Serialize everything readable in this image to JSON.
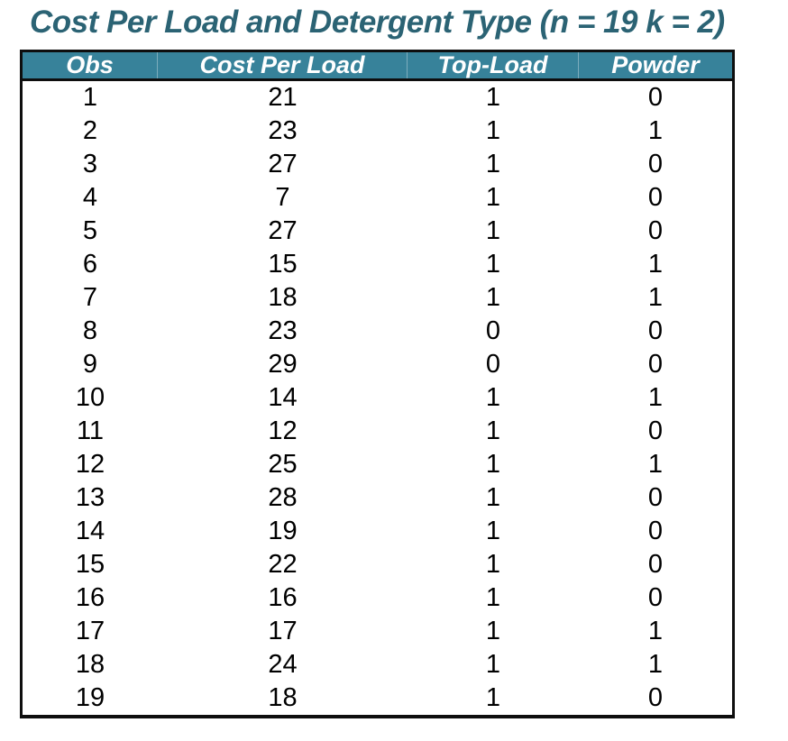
{
  "title": "Cost Per Load and Detergent Type (n = 19 k = 2)",
  "colors": {
    "title_text": "#2B6374",
    "header_background": "#37829A",
    "header_text": "#FFFFFF",
    "table_border": "#0E0E0E",
    "row_background": "#FFFFFF",
    "cell_text": "#000000"
  },
  "chart_data": {
    "type": "table",
    "title": "Cost Per Load and Detergent Type (n = 19 k = 2)",
    "n": 19,
    "k": 2,
    "columns": [
      "Obs",
      "Cost Per Load",
      "Top-Load",
      "Powder"
    ],
    "rows": [
      [
        1,
        21,
        1,
        0
      ],
      [
        2,
        23,
        1,
        1
      ],
      [
        3,
        27,
        1,
        0
      ],
      [
        4,
        7,
        1,
        0
      ],
      [
        5,
        27,
        1,
        0
      ],
      [
        6,
        15,
        1,
        1
      ],
      [
        7,
        18,
        1,
        1
      ],
      [
        8,
        23,
        0,
        0
      ],
      [
        9,
        29,
        0,
        0
      ],
      [
        10,
        14,
        1,
        1
      ],
      [
        11,
        12,
        1,
        0
      ],
      [
        12,
        25,
        1,
        1
      ],
      [
        13,
        28,
        1,
        0
      ],
      [
        14,
        19,
        1,
        0
      ],
      [
        15,
        22,
        1,
        0
      ],
      [
        16,
        16,
        1,
        0
      ],
      [
        17,
        17,
        1,
        1
      ],
      [
        18,
        24,
        1,
        1
      ],
      [
        19,
        18,
        1,
        0
      ]
    ]
  }
}
